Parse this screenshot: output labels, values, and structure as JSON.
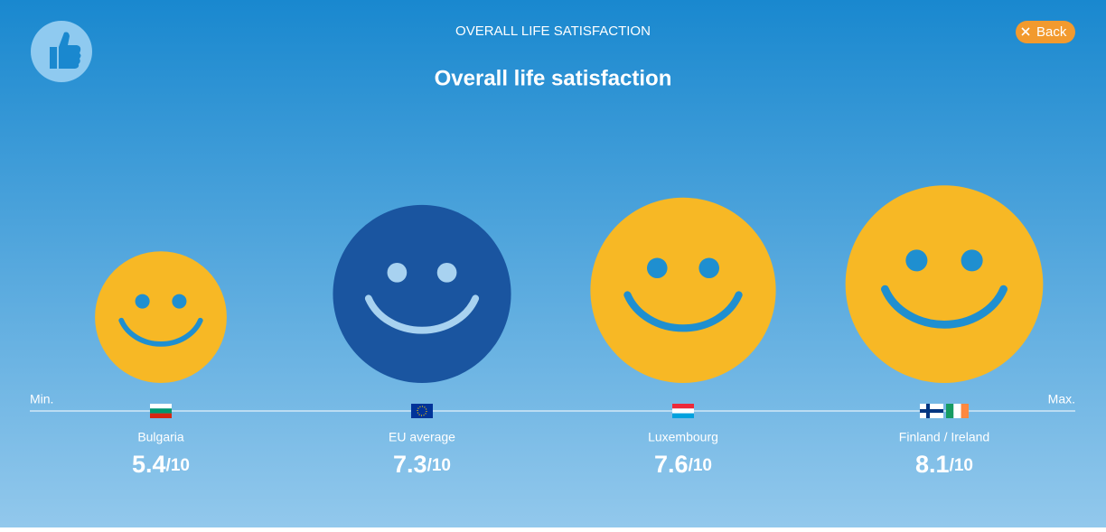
{
  "header": {
    "section": "OVERALL LIFE SATISFACTION",
    "back": "Back",
    "title": "Overall life satisfaction"
  },
  "scale": {
    "min": "Min.",
    "max": "Max.",
    "suffix": "/10"
  },
  "items": [
    {
      "label": "Bulgaria",
      "score": 5.4
    },
    {
      "label": "EU average",
      "score": 7.3
    },
    {
      "label": "Luxembourg",
      "score": 7.6
    },
    {
      "label": "Finland / Ireland",
      "score": 8.1
    }
  ]
}
